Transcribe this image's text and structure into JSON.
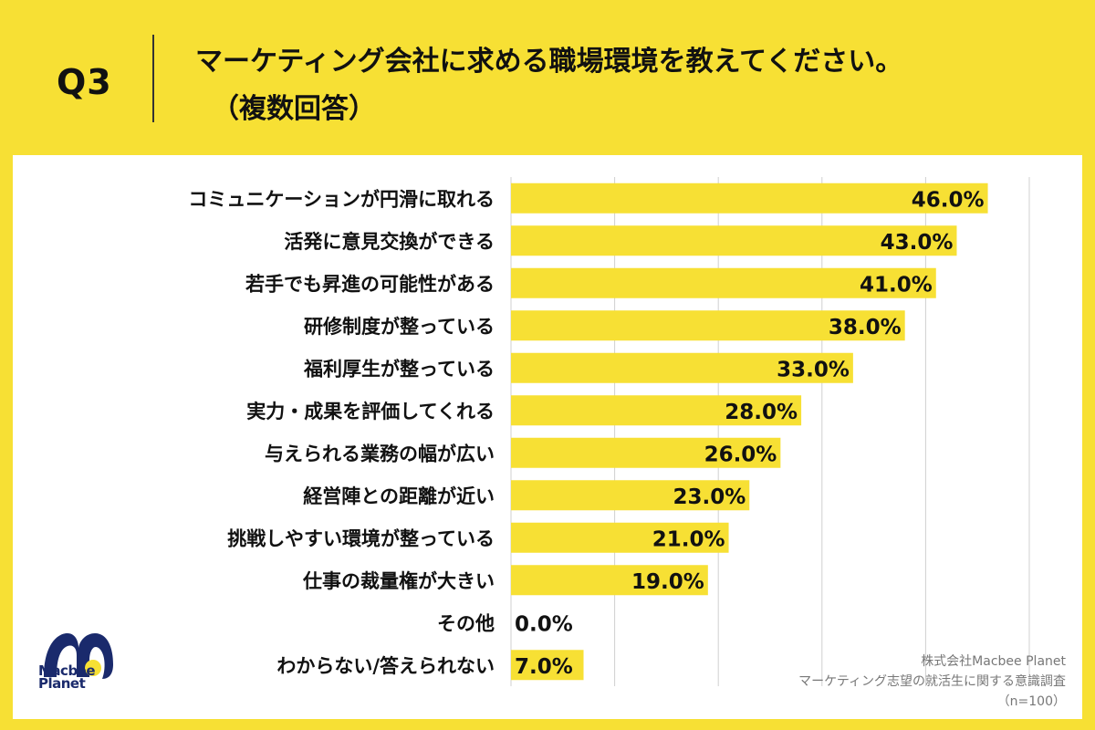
{
  "header": {
    "q_label": "Q3",
    "title_line1": "マーケティング会社に求める職場環境を教えてください。",
    "title_line2": "（複数回答）"
  },
  "colors": {
    "background": "#F7E034",
    "bar": "#F7E034",
    "panel": "#FFFFFF",
    "grid": "#D0D0D0"
  },
  "chart_data": {
    "type": "bar",
    "orientation": "horizontal",
    "categories": [
      "コミュニケーションが円滑に取れる",
      "活発に意見交換ができる",
      "若手でも昇進の可能性がある",
      "研修制度が整っている",
      "福利厚生が整っている",
      "実力・成果を評価してくれる",
      "与えられる業務の幅が広い",
      "経営陣との距離が近い",
      "挑戦しやすい環境が整っている",
      "仕事の裁量権が大きい",
      "その他",
      "わからない/答えられない"
    ],
    "values": [
      46.0,
      43.0,
      41.0,
      38.0,
      33.0,
      28.0,
      26.0,
      23.0,
      21.0,
      19.0,
      0.0,
      7.0
    ],
    "value_labels": [
      "46.0%",
      "43.0%",
      "41.0%",
      "38.0%",
      "33.0%",
      "28.0%",
      "26.0%",
      "23.0%",
      "21.0%",
      "19.0%",
      "0.0%",
      "7.0%"
    ],
    "xlim": [
      0,
      50
    ],
    "grid": true,
    "title": "",
    "xlabel": "",
    "ylabel": ""
  },
  "logo": {
    "icon": "macbee-m-logo",
    "line1": "Macbee",
    "line2": "Planet"
  },
  "source": {
    "company": "株式会社Macbee Planet",
    "survey": "マーケティング志望の就活生に関する意識調査",
    "sample": "（n=100）"
  }
}
